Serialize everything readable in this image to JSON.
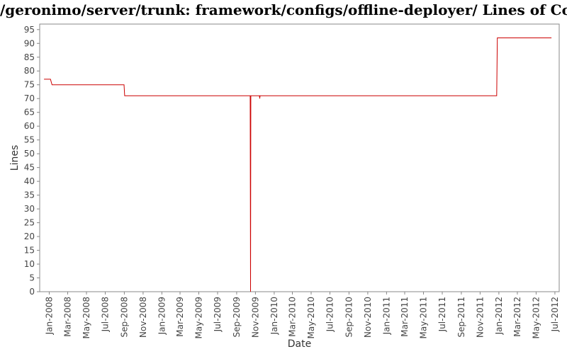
{
  "chart_data": {
    "type": "line",
    "title": "/geronimo/server/trunk: framework/configs/offline-deployer/ Lines of Code",
    "xlabel": "Date",
    "ylabel": "Lines",
    "ylim": [
      0,
      97
    ],
    "xlim": [
      "2007-12-01",
      "2012-07-15"
    ],
    "yticks": [
      0,
      5,
      10,
      15,
      20,
      25,
      30,
      35,
      40,
      45,
      50,
      55,
      60,
      65,
      70,
      75,
      80,
      85,
      90,
      95
    ],
    "xticks": [
      {
        "label": "Jan-2008",
        "date": "2008-01-01"
      },
      {
        "label": "Mar-2008",
        "date": "2008-03-01"
      },
      {
        "label": "May-2008",
        "date": "2008-05-01"
      },
      {
        "label": "Jul-2008",
        "date": "2008-07-01"
      },
      {
        "label": "Sep-2008",
        "date": "2008-09-01"
      },
      {
        "label": "Nov-2008",
        "date": "2008-11-01"
      },
      {
        "label": "Jan-2009",
        "date": "2009-01-01"
      },
      {
        "label": "Mar-2009",
        "date": "2009-03-01"
      },
      {
        "label": "May-2009",
        "date": "2009-05-01"
      },
      {
        "label": "Jul-2009",
        "date": "2009-07-01"
      },
      {
        "label": "Sep-2009",
        "date": "2009-09-01"
      },
      {
        "label": "Nov-2009",
        "date": "2009-11-01"
      },
      {
        "label": "Jan-2010",
        "date": "2010-01-01"
      },
      {
        "label": "Mar-2010",
        "date": "2010-03-01"
      },
      {
        "label": "May-2010",
        "date": "2010-05-01"
      },
      {
        "label": "Jul-2010",
        "date": "2010-07-01"
      },
      {
        "label": "Sep-2010",
        "date": "2010-09-01"
      },
      {
        "label": "Nov-2010",
        "date": "2010-11-01"
      },
      {
        "label": "Jan-2011",
        "date": "2011-01-01"
      },
      {
        "label": "Mar-2011",
        "date": "2011-03-01"
      },
      {
        "label": "May-2011",
        "date": "2011-05-01"
      },
      {
        "label": "Jul-2011",
        "date": "2011-07-01"
      },
      {
        "label": "Sep-2011",
        "date": "2011-09-01"
      },
      {
        "label": "Nov-2011",
        "date": "2011-11-01"
      },
      {
        "label": "Jan-2012",
        "date": "2012-01-01"
      },
      {
        "label": "Mar-2012",
        "date": "2012-03-01"
      },
      {
        "label": "May-2012",
        "date": "2012-05-01"
      },
      {
        "label": "Jul-2012",
        "date": "2012-07-01"
      }
    ],
    "series": [
      {
        "color": "#cc0000",
        "points": [
          {
            "x": "2007-12-15",
            "y": 77
          },
          {
            "x": "2008-01-05",
            "y": 77
          },
          {
            "x": "2008-01-10",
            "y": 75
          },
          {
            "x": "2008-08-31",
            "y": 75
          },
          {
            "x": "2008-09-02",
            "y": 71
          },
          {
            "x": "2009-10-15",
            "y": 71
          },
          {
            "x": "2009-10-16",
            "y": 0
          },
          {
            "x": "2009-10-17",
            "y": 71
          },
          {
            "x": "2009-11-14",
            "y": 71
          },
          {
            "x": "2009-11-15",
            "y": 70
          },
          {
            "x": "2009-11-16",
            "y": 71
          },
          {
            "x": "2011-12-25",
            "y": 71
          },
          {
            "x": "2011-12-27",
            "y": 92
          },
          {
            "x": "2012-06-20",
            "y": 92
          }
        ]
      }
    ],
    "grid": false,
    "legend": "none"
  }
}
